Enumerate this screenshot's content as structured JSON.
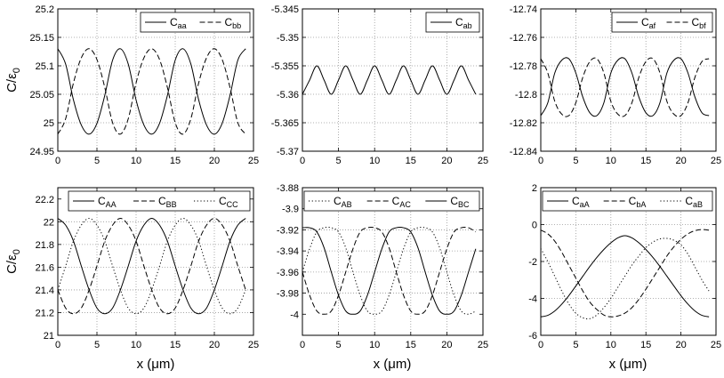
{
  "figure": {
    "ylabel_left": "C/ε",
    "ylabel_sub": "0",
    "xlabel_bottom": "x (μm)"
  },
  "chart_data": [
    {
      "type": "line",
      "xlim": [
        0,
        25
      ],
      "ylim": [
        24.95,
        25.2
      ],
      "xticks": [
        "0",
        "5",
        "10",
        "15",
        "20",
        "25"
      ],
      "yticks": [
        "24.95",
        "25",
        "25.05",
        "25.1",
        "25.15",
        "25.2"
      ],
      "ylabel": "C/ε0",
      "xlabel": "",
      "grid": true,
      "legend": "top-right",
      "series": [
        {
          "name": "Caa",
          "base": "C",
          "sub": "aa",
          "style": "solid",
          "x": [
            0,
            1,
            2,
            3,
            4,
            5,
            6,
            7,
            8,
            9,
            10,
            11,
            12,
            13,
            14,
            15,
            16,
            17,
            18,
            19,
            20,
            21,
            22,
            23,
            24
          ],
          "values": [
            25.13,
            25.103,
            25.04,
            24.996,
            24.98,
            24.999,
            25.048,
            25.11,
            25.13,
            25.103,
            25.04,
            24.996,
            24.98,
            24.999,
            25.048,
            25.11,
            25.13,
            25.103,
            25.04,
            24.996,
            24.98,
            24.999,
            25.048,
            25.11,
            25.13
          ]
        },
        {
          "name": "Cbb",
          "base": "C",
          "sub": "bb",
          "style": "dashed",
          "x": [
            0,
            1,
            2,
            3,
            4,
            5,
            6,
            7,
            8,
            9,
            10,
            11,
            12,
            13,
            14,
            15,
            16,
            17,
            18,
            19,
            20,
            21,
            22,
            23,
            24
          ],
          "values": [
            24.98,
            25.007,
            25.07,
            25.114,
            25.13,
            25.111,
            25.062,
            25.0,
            24.98,
            25.007,
            25.07,
            25.114,
            25.13,
            25.111,
            25.062,
            25.0,
            24.98,
            25.007,
            25.07,
            25.114,
            25.13,
            25.111,
            25.062,
            25.0,
            24.98
          ]
        }
      ]
    },
    {
      "type": "line",
      "xlim": [
        0,
        25
      ],
      "ylim": [
        -5.37,
        -5.345
      ],
      "xticks": [
        "0",
        "5",
        "10",
        "15",
        "20",
        "25"
      ],
      "yticks": [
        "-5.37",
        "-5.365",
        "-5.36",
        "-5.355",
        "-5.35",
        "-5.345"
      ],
      "ylabel": "",
      "xlabel": "",
      "grid": true,
      "legend": "top-right",
      "series": [
        {
          "name": "Cab",
          "base": "C",
          "sub": "ab",
          "style": "solid",
          "x": [
            0,
            1,
            2,
            3,
            4,
            5,
            6,
            7,
            8,
            9,
            10,
            11,
            12,
            13,
            14,
            15,
            16,
            17,
            18,
            19,
            20,
            21,
            22,
            23,
            24
          ],
          "values": [
            -5.36,
            -5.3575,
            -5.355,
            -5.3575,
            -5.36,
            -5.3575,
            -5.355,
            -5.3575,
            -5.36,
            -5.3575,
            -5.355,
            -5.3575,
            -5.36,
            -5.3575,
            -5.355,
            -5.3575,
            -5.36,
            -5.3575,
            -5.355,
            -5.3575,
            -5.36,
            -5.3575,
            -5.355,
            -5.3575,
            -5.36
          ]
        }
      ]
    },
    {
      "type": "line",
      "xlim": [
        0,
        25
      ],
      "ylim": [
        -12.84,
        -12.74
      ],
      "xticks": [
        "0",
        "5",
        "10",
        "15",
        "20",
        "25"
      ],
      "yticks": [
        "-12.84",
        "-12.82",
        "-12.8",
        "-12.78",
        "-12.76",
        "-12.74"
      ],
      "ylabel": "",
      "xlabel": "",
      "grid": true,
      "legend": "top-right",
      "series": [
        {
          "name": "Caf",
          "base": "C",
          "sub": "af",
          "style": "solid",
          "x": [
            0,
            1,
            2,
            3,
            4,
            5,
            6,
            7,
            8,
            9,
            10,
            11,
            12,
            13,
            14,
            15,
            16,
            17,
            18,
            19,
            20,
            21,
            22,
            23,
            24
          ],
          "values": [
            -12.815,
            -12.806,
            -12.785,
            -12.776,
            -12.775,
            -12.785,
            -12.802,
            -12.813,
            -12.815,
            -12.806,
            -12.785,
            -12.776,
            -12.775,
            -12.785,
            -12.802,
            -12.813,
            -12.815,
            -12.806,
            -12.785,
            -12.776,
            -12.775,
            -12.785,
            -12.802,
            -12.813,
            -12.815
          ]
        },
        {
          "name": "Cbf",
          "base": "C",
          "sub": "bf",
          "style": "dashed",
          "x": [
            0,
            1,
            2,
            3,
            4,
            5,
            6,
            7,
            8,
            9,
            10,
            11,
            12,
            13,
            14,
            15,
            16,
            17,
            18,
            19,
            20,
            21,
            22,
            23,
            24
          ],
          "values": [
            -12.775,
            -12.785,
            -12.805,
            -12.814,
            -12.815,
            -12.806,
            -12.788,
            -12.777,
            -12.775,
            -12.785,
            -12.805,
            -12.814,
            -12.815,
            -12.806,
            -12.788,
            -12.777,
            -12.775,
            -12.785,
            -12.805,
            -12.814,
            -12.815,
            -12.806,
            -12.788,
            -12.777,
            -12.775
          ]
        }
      ]
    },
    {
      "type": "line",
      "xlim": [
        0,
        25
      ],
      "ylim": [
        21,
        22.3
      ],
      "xticks": [
        "0",
        "5",
        "10",
        "15",
        "20",
        "25"
      ],
      "yticks": [
        "21",
        "21.2",
        "21.4",
        "21.6",
        "21.8",
        "22",
        "22.2"
      ],
      "ylabel": "C/ε0",
      "xlabel": "x (μm)",
      "grid": true,
      "legend": "top",
      "series": [
        {
          "name": "CAA",
          "base": "C",
          "sub": "AA",
          "style": "solid",
          "x": [
            0,
            1,
            2,
            3,
            4,
            5,
            6,
            7,
            8,
            9,
            10,
            11,
            12,
            13,
            14,
            15,
            16,
            17,
            18,
            19,
            20,
            21,
            22,
            23,
            24
          ],
          "values": [
            22.03,
            21.97,
            21.83,
            21.61,
            21.4,
            21.24,
            21.19,
            21.24,
            21.4,
            21.61,
            21.83,
            21.97,
            22.03,
            21.97,
            21.83,
            21.61,
            21.4,
            21.24,
            21.19,
            21.24,
            21.4,
            21.61,
            21.83,
            21.97,
            22.03
          ]
        },
        {
          "name": "CBB",
          "base": "C",
          "sub": "BB",
          "style": "dashed",
          "x": [
            0,
            1,
            2,
            3,
            4,
            5,
            6,
            7,
            8,
            9,
            10,
            11,
            12,
            13,
            14,
            15,
            16,
            17,
            18,
            19,
            20,
            21,
            22,
            23,
            24
          ],
          "values": [
            21.4,
            21.24,
            21.19,
            21.24,
            21.4,
            21.61,
            21.83,
            21.97,
            22.03,
            21.97,
            21.83,
            21.61,
            21.4,
            21.24,
            21.19,
            21.24,
            21.4,
            21.61,
            21.83,
            21.97,
            22.03,
            21.97,
            21.83,
            21.61,
            21.4
          ]
        },
        {
          "name": "CCC",
          "base": "C",
          "sub": "CC",
          "style": "dotted",
          "x": [
            0,
            1,
            2,
            3,
            4,
            5,
            6,
            7,
            8,
            9,
            10,
            11,
            12,
            13,
            14,
            15,
            16,
            17,
            18,
            19,
            20,
            21,
            22,
            23,
            24
          ],
          "values": [
            21.4,
            21.61,
            21.83,
            21.97,
            22.03,
            21.97,
            21.83,
            21.61,
            21.4,
            21.24,
            21.19,
            21.24,
            21.4,
            21.61,
            21.83,
            21.97,
            22.03,
            21.97,
            21.83,
            21.61,
            21.4,
            21.24,
            21.19,
            21.24,
            21.4
          ]
        }
      ]
    },
    {
      "type": "line",
      "xlim": [
        0,
        25
      ],
      "ylim": [
        -4.02,
        -3.88
      ],
      "xticks": [
        "0",
        "5",
        "10",
        "15",
        "20",
        "25"
      ],
      "yticks": [
        "-4",
        "-3.98",
        "-3.96",
        "-3.94",
        "-3.92",
        "-3.9",
        "-3.88"
      ],
      "ylabel": "",
      "xlabel": "x (μm)",
      "grid": true,
      "legend": "top",
      "series": [
        {
          "name": "CAB",
          "base": "C",
          "sub": "AB",
          "style": "dotted",
          "x": [
            0,
            1,
            2,
            3,
            4,
            5,
            6,
            7,
            8,
            9,
            10,
            11,
            12,
            13,
            14,
            15,
            16,
            17,
            18,
            19,
            20,
            21,
            22,
            23,
            24
          ],
          "values": [
            -3.96,
            -3.938,
            -3.922,
            -3.918,
            -3.918,
            -3.922,
            -3.937,
            -3.96,
            -3.982,
            -3.997,
            -4.0,
            -3.997,
            -3.982,
            -3.96,
            -3.938,
            -3.922,
            -3.918,
            -3.918,
            -3.922,
            -3.937,
            -3.96,
            -3.982,
            -3.997,
            -4.0,
            -3.997
          ]
        },
        {
          "name": "CAC",
          "base": "C",
          "sub": "AC",
          "style": "dashed",
          "x": [
            0,
            1,
            2,
            3,
            4,
            5,
            6,
            7,
            8,
            9,
            10,
            11,
            12,
            13,
            14,
            15,
            16,
            17,
            18,
            19,
            20,
            21,
            22,
            23,
            24
          ],
          "values": [
            -3.96,
            -3.982,
            -3.997,
            -4.0,
            -3.997,
            -3.982,
            -3.96,
            -3.938,
            -3.922,
            -3.918,
            -3.918,
            -3.922,
            -3.937,
            -3.96,
            -3.982,
            -3.997,
            -4.0,
            -3.997,
            -3.982,
            -3.96,
            -3.938,
            -3.922,
            -3.918,
            -3.918,
            -3.922
          ]
        },
        {
          "name": "CBC",
          "base": "C",
          "sub": "BC",
          "style": "solid",
          "x": [
            0,
            1,
            2,
            3,
            4,
            5,
            6,
            7,
            8,
            9,
            10,
            11,
            12,
            13,
            14,
            15,
            16,
            17,
            18,
            19,
            20,
            21,
            22,
            23,
            24
          ],
          "values": [
            -3.918,
            -3.918,
            -3.922,
            -3.937,
            -3.96,
            -3.982,
            -3.997,
            -4.0,
            -3.997,
            -3.982,
            -3.96,
            -3.938,
            -3.922,
            -3.918,
            -3.918,
            -3.922,
            -3.937,
            -3.96,
            -3.982,
            -3.997,
            -4.0,
            -3.997,
            -3.982,
            -3.96,
            -3.938
          ]
        }
      ]
    },
    {
      "type": "line",
      "xlim": [
        0,
        25
      ],
      "ylim": [
        -6,
        2
      ],
      "xticks": [
        "0",
        "5",
        "10",
        "15",
        "20",
        "25"
      ],
      "yticks": [
        "-6",
        "-4",
        "-2",
        "0",
        "2"
      ],
      "ylabel": "",
      "xlabel": "x (μm)",
      "grid": true,
      "legend": "top",
      "series": [
        {
          "name": "CaA",
          "base": "C",
          "sub": "aA",
          "style": "solid",
          "x": [
            0,
            1,
            2,
            3,
            4,
            5,
            6,
            7,
            8,
            9,
            10,
            11,
            12,
            13,
            14,
            15,
            16,
            17,
            18,
            19,
            20,
            21,
            22,
            23,
            24
          ],
          "values": [
            -5.0,
            -4.92,
            -4.68,
            -4.31,
            -3.85,
            -3.33,
            -2.8,
            -2.27,
            -1.78,
            -1.35,
            -0.99,
            -0.72,
            -0.6,
            -0.72,
            -0.99,
            -1.35,
            -1.78,
            -2.27,
            -2.8,
            -3.33,
            -3.85,
            -4.31,
            -4.68,
            -4.92,
            -5.0
          ]
        },
        {
          "name": "CbA",
          "base": "C",
          "sub": "bA",
          "style": "dashed",
          "x": [
            0,
            1,
            2,
            3,
            4,
            5,
            6,
            7,
            8,
            9,
            10,
            11,
            12,
            13,
            14,
            15,
            16,
            17,
            18,
            19,
            20,
            21,
            22,
            23,
            24
          ],
          "values": [
            -0.3,
            -0.5,
            -0.9,
            -1.5,
            -2.2,
            -2.9,
            -3.6,
            -4.2,
            -4.6,
            -4.9,
            -5.0,
            -4.95,
            -4.8,
            -4.5,
            -4.05,
            -3.5,
            -2.9,
            -2.3,
            -1.7,
            -1.2,
            -0.8,
            -0.5,
            -0.33,
            -0.27,
            -0.3
          ]
        },
        {
          "name": "CaB",
          "base": "C",
          "sub": "aB",
          "style": "dotted",
          "x": [
            0,
            1,
            2,
            3,
            4,
            5,
            6,
            7,
            8,
            9,
            10,
            11,
            12,
            13,
            14,
            15,
            16,
            17,
            18,
            19,
            20,
            21,
            22,
            23,
            24
          ],
          "values": [
            -1.3,
            -2.0,
            -2.8,
            -3.6,
            -4.3,
            -4.8,
            -5.05,
            -5.1,
            -4.9,
            -4.5,
            -4.0,
            -3.4,
            -2.8,
            -2.2,
            -1.7,
            -1.25,
            -0.95,
            -0.78,
            -0.75,
            -0.85,
            -1.1,
            -1.6,
            -2.3,
            -3.0,
            -3.6
          ]
        }
      ]
    }
  ]
}
